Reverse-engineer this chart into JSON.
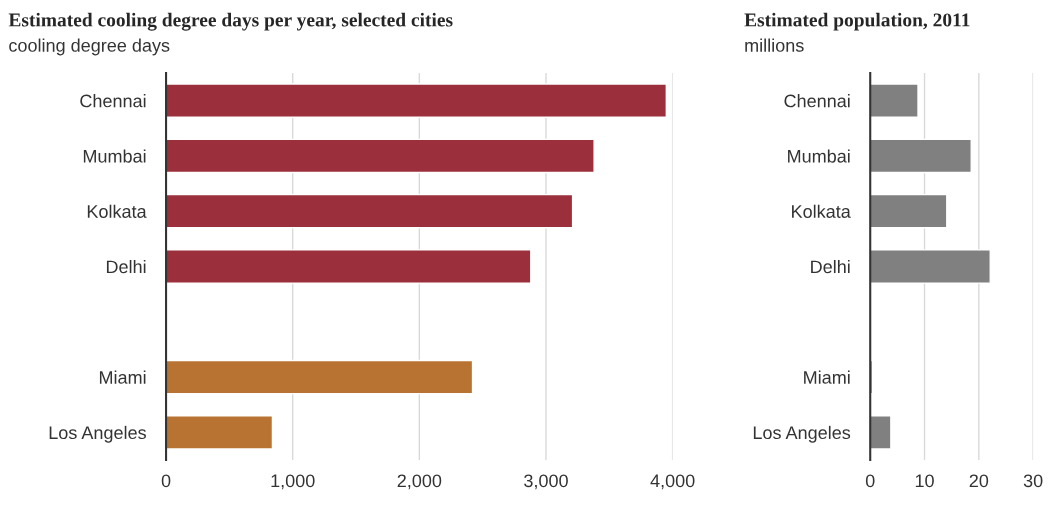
{
  "chart_data": [
    {
      "type": "bar",
      "orientation": "horizontal",
      "title": "Estimated cooling degree days per year, selected cities",
      "subtitle": "cooling degree days",
      "categories": [
        "Chennai",
        "Mumbai",
        "Kolkata",
        "Delhi",
        null,
        "Miami",
        "Los Angeles"
      ],
      "values": [
        3950,
        3380,
        3210,
        2880,
        null,
        2420,
        840
      ],
      "colors": [
        "#9b2f3c",
        "#9b2f3c",
        "#9b2f3c",
        "#9b2f3c",
        null,
        "#b87333",
        "#b87333"
      ],
      "xlim": [
        0,
        4000
      ],
      "xticks": [
        0,
        {
          "value": 1000,
          "label": "1,000"
        },
        {
          "value": 2000,
          "label": "2,000"
        },
        {
          "value": 3000,
          "label": "3,000"
        },
        {
          "value": 4000,
          "label": "4,000"
        }
      ],
      "grid": "x"
    },
    {
      "type": "bar",
      "orientation": "horizontal",
      "title": "Estimated population, 2011",
      "subtitle": "millions",
      "categories": [
        "Chennai",
        "Mumbai",
        "Kolkata",
        "Delhi",
        null,
        "Miami",
        "Los Angeles"
      ],
      "values": [
        8.8,
        18.6,
        14.1,
        22.1,
        null,
        0.4,
        3.8
      ],
      "colors": [
        "#808080",
        "#808080",
        "#808080",
        "#808080",
        null,
        "#808080",
        "#808080"
      ],
      "xlim": [
        0,
        30
      ],
      "xticks": [
        0,
        10,
        20,
        30
      ],
      "grid": "x"
    }
  ]
}
